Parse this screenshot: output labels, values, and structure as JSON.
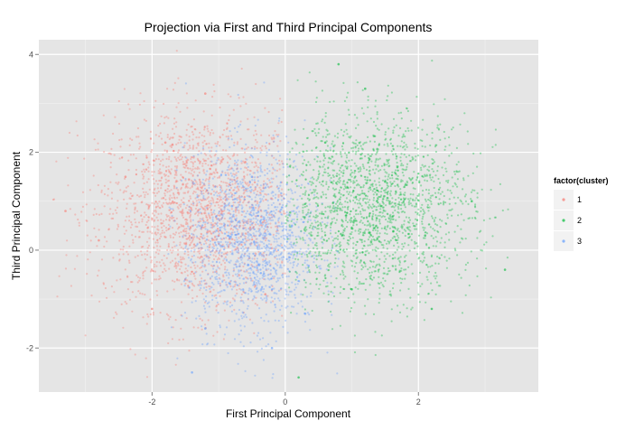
{
  "chart_data": {
    "type": "scatter",
    "title": "Projection via First and Third Principal Components",
    "xlabel": "First Principal Component",
    "ylabel": "Third Principal Component",
    "xlim": [
      -3.7,
      3.8
    ],
    "ylim": [
      -2.9,
      4.3
    ],
    "x_ticks": [
      -2,
      0,
      2
    ],
    "y_ticks": [
      -2,
      0,
      2,
      4
    ],
    "x_tick_labels": [
      "-2",
      "0",
      "2"
    ],
    "y_tick_labels": [
      "-2",
      "0",
      "2",
      "4"
    ],
    "grid": true,
    "legend": {
      "title": "factor(cluster)",
      "position": "right",
      "entries": [
        "1",
        "2",
        "3"
      ]
    },
    "series": [
      {
        "label": "1",
        "color": "#F8766D",
        "approx_count": 8000,
        "center": [
          -1.3,
          0.8
        ],
        "spread": [
          0.75,
          1.0
        ],
        "x_range": [
          -3.5,
          0.0
        ],
        "points": [
          [
            -2.4,
            1.5
          ],
          [
            -1.8,
            2.2
          ],
          [
            -1.0,
            0.3
          ],
          [
            -1.5,
            -0.6
          ],
          [
            -0.6,
            1.8
          ],
          [
            -2.8,
            0.2
          ],
          [
            -3.3,
            0.8
          ],
          [
            -1.2,
            3.2
          ],
          [
            -0.3,
            -0.9
          ],
          [
            -2.0,
            -1.2
          ]
        ]
      },
      {
        "label": "2",
        "color": "#00BA38",
        "approx_count": 8000,
        "center": [
          1.3,
          0.9
        ],
        "spread": [
          0.75,
          0.9
        ],
        "x_range": [
          0.0,
          3.5
        ],
        "points": [
          [
            1.5,
            1.4
          ],
          [
            2.1,
            0.3
          ],
          [
            0.6,
            2.2
          ],
          [
            1.0,
            -0.8
          ],
          [
            2.8,
            1.0
          ],
          [
            3.3,
            -0.4
          ],
          [
            1.2,
            3.3
          ],
          [
            0.8,
            3.8
          ],
          [
            0.2,
            -2.6
          ],
          [
            2.2,
            -1.2
          ]
        ]
      },
      {
        "label": "3",
        "color": "#619CFF",
        "approx_count": 6000,
        "center": [
          -0.5,
          0.2
        ],
        "spread": [
          0.5,
          0.9
        ],
        "x_range": [
          -1.8,
          0.8
        ],
        "points": [
          [
            -0.4,
            -0.3
          ],
          [
            -0.8,
            0.9
          ],
          [
            0.1,
            0.5
          ],
          [
            -1.2,
            -1.6
          ],
          [
            -0.2,
            -2.0
          ],
          [
            -1.4,
            -2.5
          ],
          [
            -0.5,
            1.5
          ],
          [
            0.3,
            -1.3
          ]
        ]
      }
    ]
  }
}
